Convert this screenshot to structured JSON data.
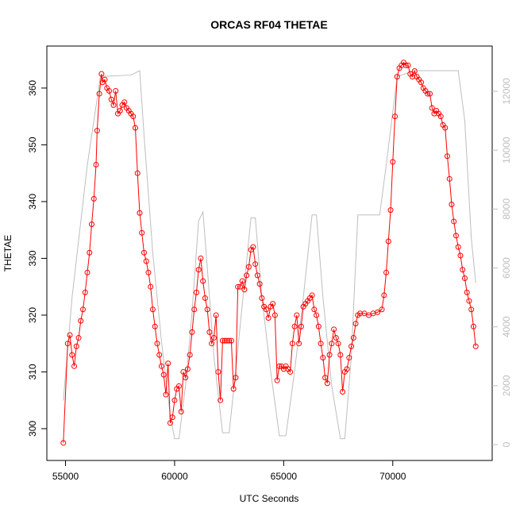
{
  "chart_data": {
    "type": "line",
    "title": "ORCAS RF04 THETAE",
    "xlabel": "UTC Seconds",
    "ylabel": "THETAE",
    "xlim": [
      54144,
      74556
    ],
    "xticks": [
      55000,
      60000,
      65000,
      70000
    ],
    "ylim": [
      294.4,
      367.4
    ],
    "yticks": [
      300,
      310,
      320,
      330,
      340,
      350,
      360
    ],
    "y2lim": [
      -539,
      13536
    ],
    "y2ticks": [
      0,
      2000,
      4000,
      6000,
      8000,
      10000,
      12000
    ],
    "series": [
      {
        "color": "#ff0000",
        "markers": true,
        "x": [
          54900,
          55100,
          55200,
          55300,
          55400,
          55500,
          55600,
          55700,
          55800,
          55900,
          56000,
          56100,
          56200,
          56300,
          56400,
          56450,
          56550,
          56650,
          56700,
          56800,
          56900,
          57000,
          57100,
          57200,
          57300,
          57400,
          57500,
          57600,
          57700,
          57800,
          57900,
          58000,
          58100,
          58200,
          58300,
          58400,
          58500,
          58600,
          58700,
          58800,
          58900,
          59000,
          59100,
          59200,
          59300,
          59400,
          59500,
          59600,
          59700,
          59800,
          59900,
          60000,
          60100,
          60200,
          60300,
          60400,
          60500,
          60600,
          60700,
          60800,
          60900,
          61000,
          61100,
          61200,
          61300,
          61400,
          61500,
          61600,
          61700,
          61800,
          61900,
          62000,
          62100,
          62200,
          62300,
          62400,
          62500,
          62600,
          62700,
          62800,
          62900,
          63000,
          63100,
          63200,
          63300,
          63400,
          63500,
          63600,
          63700,
          63800,
          63900,
          64000,
          64100,
          64200,
          64300,
          64400,
          64500,
          64600,
          64700,
          64800,
          64900,
          65000,
          65100,
          65200,
          65300,
          65400,
          65500,
          65600,
          65700,
          65800,
          65900,
          66000,
          66100,
          66200,
          66300,
          66400,
          66500,
          66600,
          66700,
          66800,
          66900,
          67000,
          67100,
          67200,
          67300,
          67400,
          67500,
          67600,
          67700,
          67800,
          67900,
          68000,
          68100,
          68200,
          68300,
          68400,
          68500,
          68700,
          68900,
          69100,
          69300,
          69500,
          69600,
          69700,
          69800,
          69900,
          70000,
          70100,
          70200,
          70300,
          70400,
          70500,
          70600,
          70700,
          70800,
          70900,
          71000,
          71100,
          71200,
          71300,
          71400,
          71500,
          71600,
          71700,
          71800,
          71900,
          72000,
          72100,
          72200,
          72300,
          72400,
          72500,
          72600,
          72700,
          72800,
          72900,
          73000,
          73100,
          73200,
          73300,
          73400,
          73500,
          73600,
          73700,
          73800
        ],
        "values": [
          297.5,
          315,
          316.5,
          313,
          311,
          314.5,
          316,
          319,
          321,
          324,
          327.5,
          331,
          336,
          340.5,
          346.5,
          352.5,
          359,
          362.5,
          361,
          361.5,
          360,
          359.5,
          358,
          357,
          359.5,
          355.5,
          356,
          357,
          357.5,
          356.5,
          356,
          355.5,
          355,
          353,
          345,
          338,
          334.5,
          331,
          329.5,
          327.5,
          325,
          321,
          318,
          315,
          313,
          311,
          309.5,
          306,
          311.5,
          301,
          302,
          305,
          307,
          307.5,
          303,
          310,
          309,
          310.5,
          313,
          317,
          321,
          324,
          328,
          330,
          326,
          323,
          321,
          317,
          315,
          316,
          320,
          310,
          305,
          315.5,
          315.5,
          315.5,
          315.5,
          315.5,
          307,
          309,
          325,
          325,
          326,
          324.5,
          327,
          328.5,
          331.5,
          332,
          329,
          327,
          325.5,
          323,
          321.5,
          321,
          319.5,
          321.5,
          322,
          320,
          308.5,
          311,
          311,
          310.5,
          311,
          310.5,
          310,
          315,
          318,
          320,
          315,
          318,
          321.5,
          322,
          322.5,
          323,
          323.5,
          321,
          320,
          318,
          315,
          312.5,
          309,
          308,
          313,
          315,
          317.5,
          316,
          315,
          313,
          306.5,
          310,
          310.5,
          312.5,
          314.5,
          316,
          318.5,
          320,
          320.3,
          320.3,
          320,
          320.3,
          320.5,
          321,
          323.5,
          327.5,
          333,
          338.5,
          347,
          355,
          362,
          363.5,
          364,
          364.5,
          364,
          364,
          362.5,
          362,
          363,
          362,
          361.5,
          361,
          360,
          359.5,
          359,
          359,
          356.5,
          355.5,
          356,
          355.5,
          355,
          353.5,
          353,
          348,
          344,
          339.5,
          336.5,
          334,
          332,
          330.5,
          328,
          326.5,
          324,
          322.5,
          321,
          318,
          314.5
        ]
      },
      {
        "color": "#bebebe",
        "axis": "y2",
        "markers": false,
        "x": [
          54900,
          55300,
          56000,
          56600,
          58000,
          58400,
          58600,
          59000,
          59400,
          59800,
          60000,
          60200,
          60500,
          60800,
          61100,
          61300,
          61500,
          61800,
          62200,
          62500,
          62800,
          63200,
          63500,
          63700,
          64000,
          64400,
          64800,
          65100,
          65500,
          65900,
          66300,
          66500,
          66800,
          67200,
          67600,
          67800,
          68100,
          68400,
          69400,
          69700,
          70200,
          71000,
          73000,
          73300,
          73600,
          73800
        ],
        "values": [
          1500,
          5000,
          9500,
          12500,
          12550,
          12700,
          10500,
          6500,
          3500,
          1000,
          200,
          200,
          2000,
          4500,
          7600,
          7900,
          6000,
          3000,
          400,
          400,
          2500,
          5500,
          7700,
          7700,
          5000,
          2500,
          300,
          300,
          2500,
          5000,
          7800,
          7800,
          5000,
          2000,
          200,
          200,
          3000,
          7800,
          7800,
          9500,
          12500,
          12700,
          12700,
          11000,
          7000,
          5500
        ]
      }
    ]
  }
}
